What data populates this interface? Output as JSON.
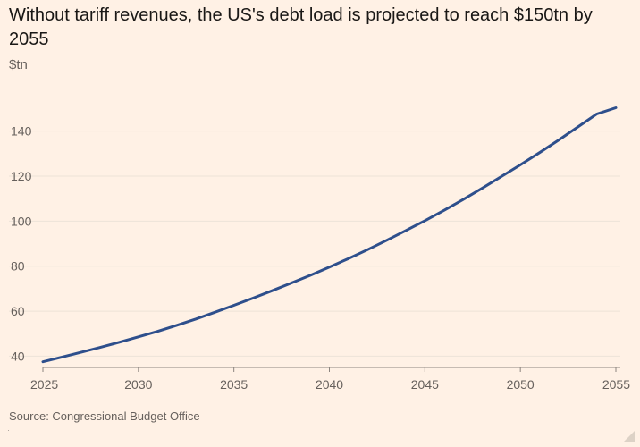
{
  "title": "Without tariff revenues, the US's debt load is projected to reach $150tn by 2055",
  "source": "Source: Congressional Budget Office",
  "colors": {
    "background": "#fff1e5",
    "line": "#2e4f8c",
    "grid": "#ede3d8",
    "axis": "#8c857f"
  },
  "chart_data": {
    "type": "line",
    "title": "Without tariff revenues, the US's debt load is projected to reach $150tn by 2055",
    "ylabel": "$tn",
    "xlabel": "",
    "xlim": [
      2025,
      2055
    ],
    "ylim": [
      35,
      150
    ],
    "x_ticks": [
      2025,
      2030,
      2035,
      2040,
      2045,
      2050,
      2055
    ],
    "y_ticks": [
      40,
      60,
      80,
      100,
      120,
      140
    ],
    "grid": true,
    "series": [
      {
        "name": "US debt load",
        "x": [
          2025,
          2026,
          2027,
          2028,
          2029,
          2030,
          2031,
          2032,
          2033,
          2034,
          2035,
          2036,
          2037,
          2038,
          2039,
          2040,
          2041,
          2042,
          2043,
          2044,
          2045,
          2046,
          2047,
          2048,
          2049,
          2050,
          2051,
          2052,
          2053,
          2054,
          2055
        ],
        "values": [
          37.5,
          39.6,
          41.7,
          43.9,
          46.2,
          48.6,
          51.0,
          53.7,
          56.5,
          59.5,
          62.6,
          65.8,
          69.1,
          72.5,
          75.9,
          79.6,
          83.4,
          87.3,
          91.5,
          95.8,
          100.2,
          104.8,
          109.6,
          114.6,
          119.8,
          125.0,
          130.4,
          136.0,
          141.8,
          147.6,
          150.4
        ]
      }
    ]
  }
}
